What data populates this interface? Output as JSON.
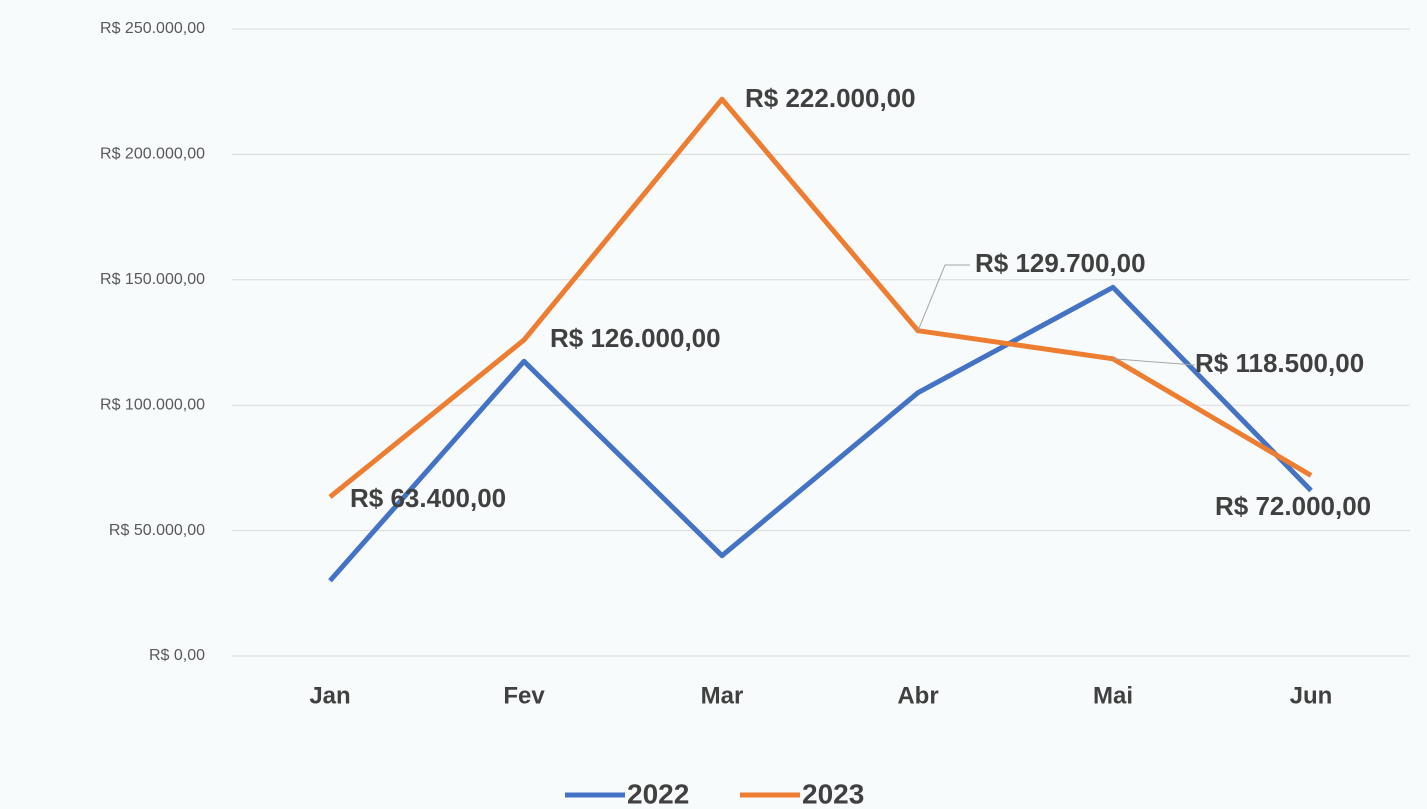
{
  "chart_data": {
    "type": "line",
    "categories": [
      "Jan",
      "Fev",
      "Mar",
      "Abr",
      "Mai",
      "Jun"
    ],
    "series": [
      {
        "name": "2022",
        "color": "#4472c4",
        "values": [
          30000,
          117500,
          40000,
          105000,
          147000,
          66000
        ]
      },
      {
        "name": "2023",
        "color": "#ed7d31",
        "values": [
          63400,
          126000,
          222000,
          129700,
          118500,
          72000
        ],
        "value_labels": [
          "R$ 63.400,00",
          "R$ 126.000,00",
          "R$ 222.000,00",
          "R$ 129.700,00",
          "R$ 118.500,00",
          "R$ 72.000,00"
        ]
      }
    ],
    "ylim": [
      0,
      250000
    ],
    "yticks": [
      {
        "value": 0,
        "label": "R$ 0,00"
      },
      {
        "value": 50000,
        "label": "R$ 50.000,00"
      },
      {
        "value": 100000,
        "label": "R$ 100.000,00"
      },
      {
        "value": 150000,
        "label": "R$ 150.000,00"
      },
      {
        "value": 200000,
        "label": "R$ 200.000,00"
      },
      {
        "value": 250000,
        "label": "R$ 250.000,00"
      }
    ],
    "grid": true,
    "legend": "bottom"
  }
}
